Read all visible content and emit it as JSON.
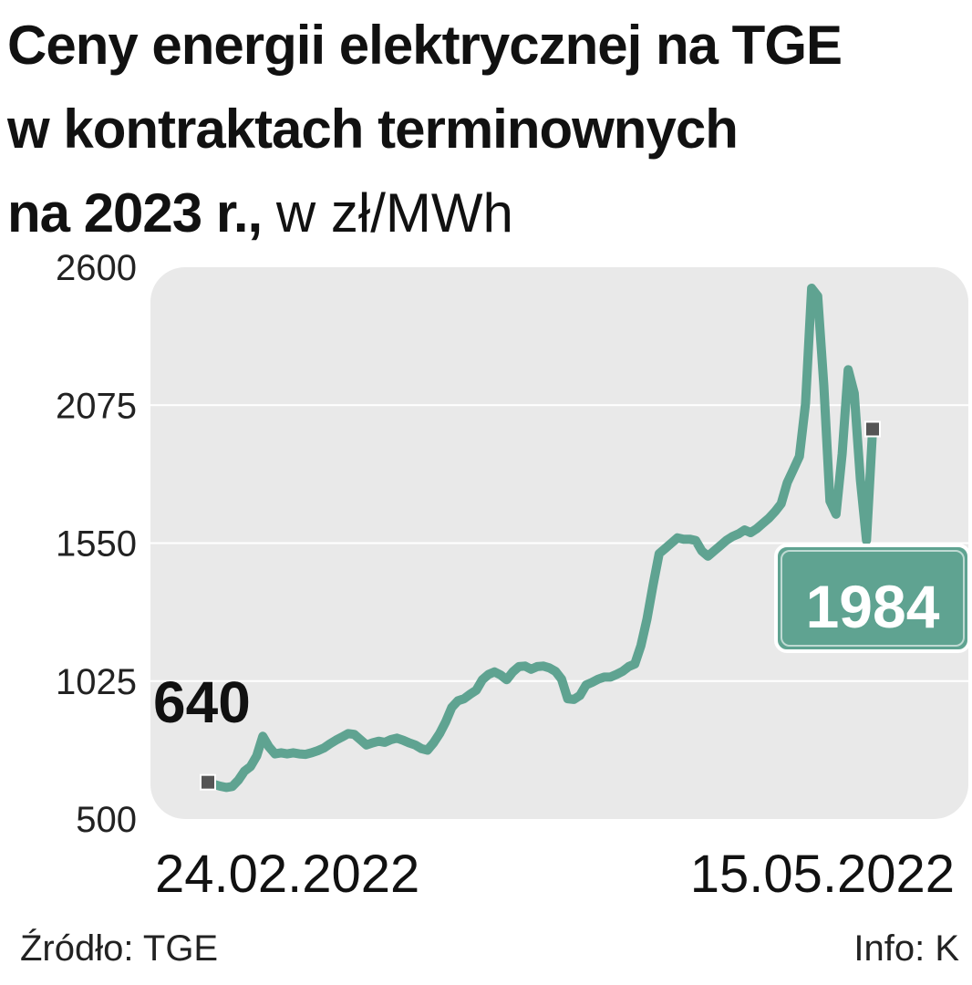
{
  "header": {
    "title_line1": "Ceny energii elektrycznej na TGE",
    "title_line2": "w kontraktach terminownych",
    "title_line3_bold": "na 2023 r.,",
    "title_unit": "w zł/MWh"
  },
  "footer": {
    "source": "Źródło: TGE",
    "info": "Info: K"
  },
  "colors": {
    "line": "#5fa391",
    "plot_bg": "#e9e9e9",
    "grid": "#ffffff",
    "marker": "#555555"
  },
  "chart_data": {
    "type": "line",
    "title": "Ceny energii elektrycznej na TGE w kontraktach terminownych na 2023 r.",
    "ylabel": "w zł/MWh",
    "ylim": [
      500,
      2600
    ],
    "yticks": [
      2600,
      2075,
      1550,
      1025,
      500
    ],
    "xtick_labels": [
      {
        "label": "24.02.2022",
        "index": 0
      },
      {
        "label": "15.05.2022",
        "index": 99
      }
    ],
    "grid": true,
    "annotations": {
      "start_value": "640",
      "end_value": "1984"
    },
    "series": [
      {
        "values": [
          640,
          632,
          625,
          620,
          624,
          648,
          682,
          700,
          740,
          815,
          775,
          748,
          752,
          748,
          752,
          748,
          746,
          752,
          760,
          770,
          786,
          800,
          812,
          825,
          822,
          802,
          782,
          790,
          796,
          792,
          802,
          808,
          800,
          790,
          782,
          768,
          762,
          790,
          825,
          870,
          925,
          950,
          958,
          975,
          990,
          1030,
          1050,
          1060,
          1048,
          1030,
          1060,
          1080,
          1082,
          1070,
          1080,
          1082,
          1075,
          1062,
          1032,
          958,
          955,
          970,
          1010,
          1020,
          1032,
          1040,
          1040,
          1050,
          1062,
          1080,
          1090,
          1160,
          1260,
          1390,
          1510,
          1530,
          1550,
          1570,
          1565,
          1565,
          1560,
          1520,
          1500,
          1520,
          1540,
          1560,
          1575,
          1585,
          1600,
          1590,
          1605,
          1625,
          1645,
          1670,
          1700,
          1780,
          1830,
          1880,
          2080,
          2520,
          2490,
          2150,
          1710,
          1660,
          1890,
          2210,
          2120,
          1790,
          1560,
          1984
        ]
      }
    ]
  }
}
